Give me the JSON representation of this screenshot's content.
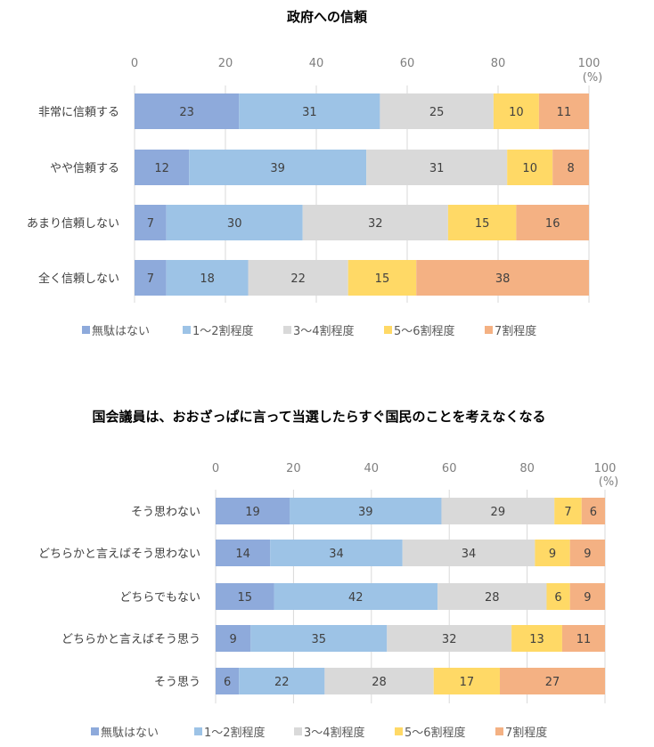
{
  "chart_data": [
    {
      "type": "bar",
      "orientation": "horizontal",
      "stacked": true,
      "title": "政府への信頼",
      "xlabel": "",
      "unit_label": "(%)",
      "xlim": [
        0,
        100
      ],
      "xticks": [
        "0",
        "20",
        "40",
        "60",
        "80",
        "100"
      ],
      "grid": true,
      "legend_position": "bottom",
      "categories": [
        "非常に信頼する",
        "やや信頼する",
        "あまり信頼しない",
        "全く信頼しない"
      ],
      "series": [
        {
          "name": "無駄はない",
          "color": "#8eaadb",
          "values": [
            23,
            12,
            7,
            7
          ]
        },
        {
          "name": "1～2割程度",
          "color": "#9dc3e6",
          "values": [
            31,
            39,
            30,
            18
          ]
        },
        {
          "name": "3～4割程度",
          "color": "#d9d9d9",
          "values": [
            25,
            31,
            32,
            22
          ]
        },
        {
          "name": "5～6割程度",
          "color": "#ffd966",
          "values": [
            10,
            10,
            15,
            15
          ]
        },
        {
          "name": "7割程度",
          "color": "#f4b183",
          "values": [
            11,
            8,
            16,
            38
          ]
        }
      ]
    },
    {
      "type": "bar",
      "orientation": "horizontal",
      "stacked": true,
      "title": "国会議員は、おおざっぱに言って当選したらすぐ国民のことを考えなくなる",
      "xlabel": "",
      "unit_label": "(%)",
      "xlim": [
        0,
        100
      ],
      "xticks": [
        "0",
        "20",
        "40",
        "60",
        "80",
        "100"
      ],
      "grid": true,
      "legend_position": "bottom",
      "categories": [
        "そう思わない",
        "どちらかと言えばそう思わない",
        "どちらでもない",
        "どちらかと言えばそう思う",
        "そう思う"
      ],
      "series": [
        {
          "name": "無駄はない",
          "color": "#8eaadb",
          "values": [
            19,
            14,
            15,
            9,
            6
          ]
        },
        {
          "name": "1～2割程度",
          "color": "#9dc3e6",
          "values": [
            39,
            34,
            42,
            35,
            22
          ]
        },
        {
          "name": "3～4割程度",
          "color": "#d9d9d9",
          "values": [
            29,
            34,
            28,
            32,
            28
          ]
        },
        {
          "name": "5～6割程度",
          "color": "#ffd966",
          "values": [
            7,
            9,
            6,
            13,
            17
          ]
        },
        {
          "name": "7割程度",
          "color": "#f4b183",
          "values": [
            6,
            9,
            9,
            11,
            27
          ]
        }
      ]
    }
  ]
}
